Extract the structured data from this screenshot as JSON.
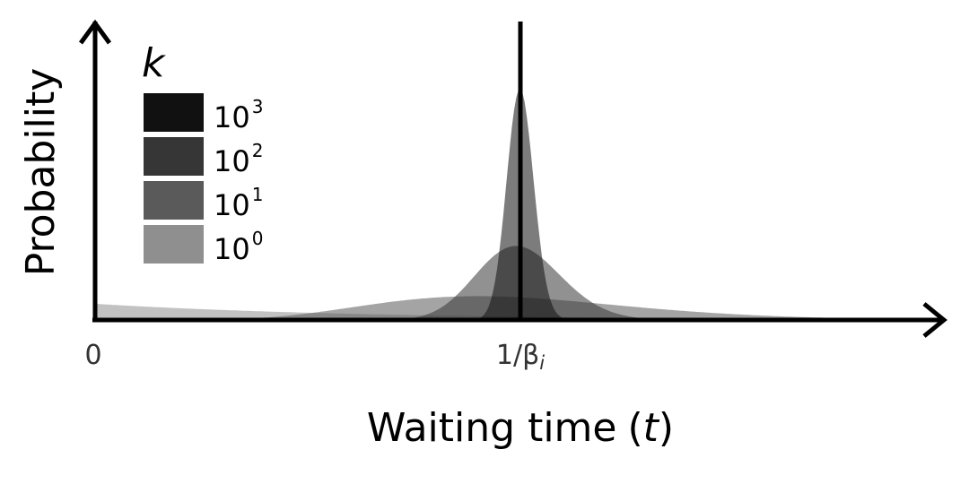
{
  "chart_data": {
    "type": "area",
    "xlabel_text": "Waiting time",
    "xlabel_var": "t",
    "ylabel": "Probability",
    "x_ticks": [
      {
        "value": 0,
        "label": "0",
        "sub": ""
      },
      {
        "value": 1,
        "label": "1/β",
        "sub": "i"
      }
    ],
    "xlim": [
      0,
      2
    ],
    "ylim": [
      0,
      1
    ],
    "reference_line": {
      "x": 1
    },
    "legend": {
      "title": "k",
      "position": "top-left"
    },
    "grid": false,
    "series": [
      {
        "name": "10^0",
        "label_base": "10",
        "label_exp": "0",
        "k": 1,
        "color": "#8f8f8f"
      },
      {
        "name": "10^1",
        "label_base": "10",
        "label_exp": "1",
        "k": 10,
        "color": "#5a5a5a"
      },
      {
        "name": "10^2",
        "label_base": "10",
        "label_exp": "2",
        "k": 100,
        "color": "#363636"
      },
      {
        "name": "10^3",
        "label_base": "10",
        "label_exp": "3",
        "k": 1000,
        "color": "#111111"
      }
    ],
    "peak_values": {
      "10^0": 0.07,
      "10^1": 0.103,
      "10^2": 0.32,
      "10^3": 1.0
    }
  }
}
